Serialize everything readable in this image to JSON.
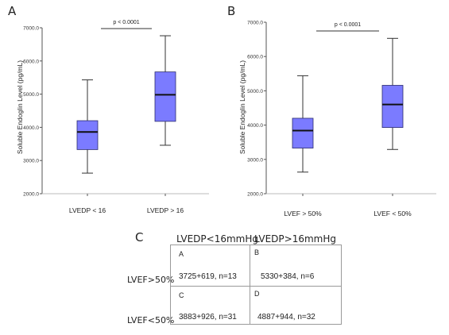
{
  "panel_letters": {
    "a": "A",
    "b": "B",
    "c": "C"
  },
  "colors": {
    "box_fill": "#7b7bff",
    "box_stroke": "#2c2c6e",
    "axis": "#555555"
  },
  "chart_data": [
    {
      "type": "box",
      "ylabel": "Soluble Endoglin Level (pg/mL)",
      "ylim": [
        2000,
        7000
      ],
      "yticks": [
        "2000.0",
        "3000.0",
        "4000.0",
        "5000.0",
        "6000.0",
        "7000.0"
      ],
      "categories": [
        "LVEDP < 16",
        "LVEDP > 16"
      ],
      "boxes": [
        {
          "min": 2620,
          "q1": 3330,
          "median": 3860,
          "q3": 4200,
          "max": 5430
        },
        {
          "min": 3460,
          "q1": 4180,
          "median": 4980,
          "q3": 5670,
          "max": 6760
        }
      ],
      "annotation": "p < 0.0001"
    },
    {
      "type": "box",
      "ylabel": "Soluble Endoglin Level (pg/mL)",
      "ylim": [
        2000,
        7000
      ],
      "yticks": [
        "2000.0",
        "3000.0",
        "4000.0",
        "5000.0",
        "6000.0",
        "7000.0"
      ],
      "categories": [
        "LVEF > 50%",
        "LVEF < 50%"
      ],
      "boxes": [
        {
          "min": 2630,
          "q1": 3330,
          "median": 3840,
          "q3": 4200,
          "max": 5440
        },
        {
          "min": 3290,
          "q1": 3930,
          "median": 4600,
          "q3": 5160,
          "max": 6530
        }
      ],
      "annotation": "p < 0.0001"
    }
  ],
  "table": {
    "col_headers": [
      "LVEDP<16mmHg",
      "LVEDP>16mmHg"
    ],
    "row_headers": [
      "LVEF>50%",
      "LVEF<50%"
    ],
    "cells": [
      {
        "letter": "A",
        "value": "3725+619, n=13"
      },
      {
        "letter": "B",
        "value": "5330+384, n=6"
      },
      {
        "letter": "C",
        "value": "3883+926, n=31"
      },
      {
        "letter": "D",
        "value": "4887+944, n=32"
      }
    ]
  }
}
